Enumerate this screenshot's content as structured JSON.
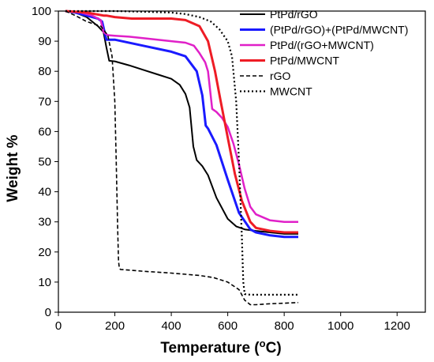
{
  "chart_data": {
    "type": "line",
    "title": "",
    "xlabel": "Temperature (oC)",
    "xlabel_main": "Temperature (",
    "xlabel_sup": "o",
    "xlabel_end": "C)",
    "ylabel": "Weight %",
    "xlim": [
      0,
      1300
    ],
    "ylim": [
      0,
      100
    ],
    "x_ticks": [
      "0",
      "200",
      "400",
      "600",
      "800",
      "1000",
      "1200"
    ],
    "y_ticks": [
      "0",
      "10",
      "20",
      "30",
      "40",
      "50",
      "60",
      "70",
      "80",
      "90",
      "100"
    ],
    "grid": false,
    "legend_position": "top-right",
    "series": [
      {
        "name": "PtPd/rGO",
        "color": "#000000",
        "dash": "solid",
        "width": 2,
        "x": [
          25,
          60,
          100,
          140,
          160,
          170,
          180,
          200,
          250,
          300,
          350,
          400,
          430,
          450,
          465,
          478,
          490,
          510,
          530,
          560,
          600,
          630,
          660,
          700,
          750,
          800,
          850
        ],
        "y": [
          100,
          99.5,
          98,
          95,
          93,
          88,
          83.5,
          83.3,
          82,
          80.5,
          79,
          77.5,
          75.5,
          72.5,
          68,
          55,
          50.5,
          48.5,
          45.5,
          38,
          31,
          28.5,
          27.5,
          27,
          26.5,
          26,
          26
        ]
      },
      {
        "name": "(PtPd/rGO)+(PtPd/MWCNT)",
        "color": "#1a1aff",
        "dash": "solid",
        "width": 3,
        "x": [
          25,
          60,
          100,
          140,
          155,
          170,
          200,
          300,
          400,
          450,
          490,
          510,
          522,
          530,
          560,
          600,
          640,
          680,
          700,
          750,
          800,
          850
        ],
        "y": [
          100,
          99.5,
          98.5,
          97.5,
          96.5,
          90.5,
          90.5,
          88.5,
          86.5,
          85,
          80,
          72,
          62,
          61,
          55.5,
          44,
          33,
          27.5,
          26.5,
          25.5,
          25,
          25
        ]
      },
      {
        "name": "PtPd/(rGO+MWCNT)",
        "color": "#e020c8",
        "dash": "solid",
        "width": 2.5,
        "x": [
          25,
          80,
          120,
          150,
          160,
          175,
          200,
          250,
          300,
          400,
          450,
          480,
          500,
          520,
          530,
          545,
          560,
          580,
          600,
          620,
          640,
          660,
          680,
          700,
          750,
          800,
          850
        ],
        "y": [
          100,
          99.5,
          98.5,
          97,
          93,
          92,
          91.8,
          91.5,
          91,
          90,
          89.5,
          88.5,
          86,
          83,
          80,
          67.5,
          66.5,
          64.5,
          61.5,
          56,
          49,
          41,
          35,
          32.5,
          30.5,
          30,
          30
        ]
      },
      {
        "name": "PtPd/MWCNT",
        "color": "#ee1c25",
        "dash": "solid",
        "width": 3,
        "x": [
          25,
          100,
          160,
          170,
          200,
          260,
          300,
          400,
          450,
          500,
          530,
          555,
          575,
          600,
          625,
          650,
          680,
          700,
          750,
          800,
          850
        ],
        "y": [
          100,
          99.5,
          98.5,
          98.5,
          98,
          97.5,
          97.5,
          97.5,
          97,
          95,
          90,
          80,
          70,
          58,
          46,
          37,
          30,
          28,
          27,
          26.5,
          26.5
        ]
      },
      {
        "name": "rGO",
        "color": "#000000",
        "dash": "5,3",
        "width": 1.6,
        "x": [
          25,
          60,
          100,
          150,
          175,
          190,
          200,
          205,
          210,
          213,
          216,
          220,
          250,
          300,
          350,
          400,
          450,
          500,
          550,
          600,
          640,
          660,
          680,
          700,
          750,
          800,
          850
        ],
        "y": [
          100,
          98.5,
          96.5,
          95,
          92,
          85,
          70,
          50,
          28,
          17,
          14.5,
          14.2,
          14,
          13.6,
          13.3,
          13,
          12.6,
          12.2,
          11.5,
          10,
          7.5,
          4,
          2.5,
          2.5,
          2.8,
          3,
          3.2
        ]
      },
      {
        "name": "MWCNT",
        "color": "#000000",
        "dash": "2,3",
        "width": 2.2,
        "x": [
          25,
          100,
          200,
          300,
          400,
          450,
          500,
          540,
          570,
          600,
          615,
          630,
          640,
          650,
          655,
          660,
          680,
          700,
          750,
          800,
          850
        ],
        "y": [
          100,
          100,
          100,
          99.8,
          99.5,
          99,
          98,
          96.5,
          94,
          90,
          85,
          70,
          50,
          25,
          10,
          6,
          5.8,
          5.8,
          5.8,
          5.8,
          5.8
        ]
      }
    ]
  }
}
